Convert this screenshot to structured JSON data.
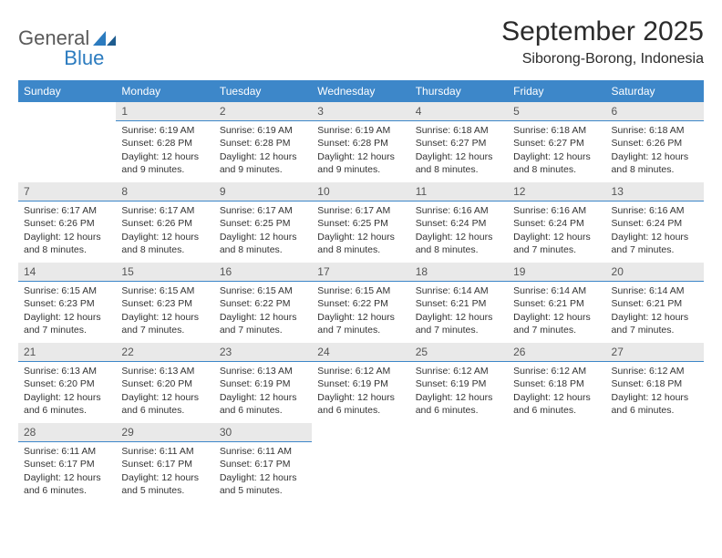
{
  "brand": {
    "word1": "General",
    "word2": "Blue",
    "logo_color": "#2b7bbf"
  },
  "header": {
    "title": "September 2025",
    "location": "Siborong-Borong, Indonesia"
  },
  "colors": {
    "header_bg": "#3d87c9",
    "header_text": "#ffffff",
    "daynum_bg": "#e9e9e9",
    "daynum_border": "#3d87c9",
    "body_text": "#333333"
  },
  "weekdays": [
    "Sunday",
    "Monday",
    "Tuesday",
    "Wednesday",
    "Thursday",
    "Friday",
    "Saturday"
  ],
  "calendar": {
    "start_offset": 1,
    "days": [
      {
        "n": 1,
        "sunrise": "6:19 AM",
        "sunset": "6:28 PM",
        "daylight": "12 hours and 9 minutes."
      },
      {
        "n": 2,
        "sunrise": "6:19 AM",
        "sunset": "6:28 PM",
        "daylight": "12 hours and 9 minutes."
      },
      {
        "n": 3,
        "sunrise": "6:19 AM",
        "sunset": "6:28 PM",
        "daylight": "12 hours and 9 minutes."
      },
      {
        "n": 4,
        "sunrise": "6:18 AM",
        "sunset": "6:27 PM",
        "daylight": "12 hours and 8 minutes."
      },
      {
        "n": 5,
        "sunrise": "6:18 AM",
        "sunset": "6:27 PM",
        "daylight": "12 hours and 8 minutes."
      },
      {
        "n": 6,
        "sunrise": "6:18 AM",
        "sunset": "6:26 PM",
        "daylight": "12 hours and 8 minutes."
      },
      {
        "n": 7,
        "sunrise": "6:17 AM",
        "sunset": "6:26 PM",
        "daylight": "12 hours and 8 minutes."
      },
      {
        "n": 8,
        "sunrise": "6:17 AM",
        "sunset": "6:26 PM",
        "daylight": "12 hours and 8 minutes."
      },
      {
        "n": 9,
        "sunrise": "6:17 AM",
        "sunset": "6:25 PM",
        "daylight": "12 hours and 8 minutes."
      },
      {
        "n": 10,
        "sunrise": "6:17 AM",
        "sunset": "6:25 PM",
        "daylight": "12 hours and 8 minutes."
      },
      {
        "n": 11,
        "sunrise": "6:16 AM",
        "sunset": "6:24 PM",
        "daylight": "12 hours and 8 minutes."
      },
      {
        "n": 12,
        "sunrise": "6:16 AM",
        "sunset": "6:24 PM",
        "daylight": "12 hours and 7 minutes."
      },
      {
        "n": 13,
        "sunrise": "6:16 AM",
        "sunset": "6:24 PM",
        "daylight": "12 hours and 7 minutes."
      },
      {
        "n": 14,
        "sunrise": "6:15 AM",
        "sunset": "6:23 PM",
        "daylight": "12 hours and 7 minutes."
      },
      {
        "n": 15,
        "sunrise": "6:15 AM",
        "sunset": "6:23 PM",
        "daylight": "12 hours and 7 minutes."
      },
      {
        "n": 16,
        "sunrise": "6:15 AM",
        "sunset": "6:22 PM",
        "daylight": "12 hours and 7 minutes."
      },
      {
        "n": 17,
        "sunrise": "6:15 AM",
        "sunset": "6:22 PM",
        "daylight": "12 hours and 7 minutes."
      },
      {
        "n": 18,
        "sunrise": "6:14 AM",
        "sunset": "6:21 PM",
        "daylight": "12 hours and 7 minutes."
      },
      {
        "n": 19,
        "sunrise": "6:14 AM",
        "sunset": "6:21 PM",
        "daylight": "12 hours and 7 minutes."
      },
      {
        "n": 20,
        "sunrise": "6:14 AM",
        "sunset": "6:21 PM",
        "daylight": "12 hours and 7 minutes."
      },
      {
        "n": 21,
        "sunrise": "6:13 AM",
        "sunset": "6:20 PM",
        "daylight": "12 hours and 6 minutes."
      },
      {
        "n": 22,
        "sunrise": "6:13 AM",
        "sunset": "6:20 PM",
        "daylight": "12 hours and 6 minutes."
      },
      {
        "n": 23,
        "sunrise": "6:13 AM",
        "sunset": "6:19 PM",
        "daylight": "12 hours and 6 minutes."
      },
      {
        "n": 24,
        "sunrise": "6:12 AM",
        "sunset": "6:19 PM",
        "daylight": "12 hours and 6 minutes."
      },
      {
        "n": 25,
        "sunrise": "6:12 AM",
        "sunset": "6:19 PM",
        "daylight": "12 hours and 6 minutes."
      },
      {
        "n": 26,
        "sunrise": "6:12 AM",
        "sunset": "6:18 PM",
        "daylight": "12 hours and 6 minutes."
      },
      {
        "n": 27,
        "sunrise": "6:12 AM",
        "sunset": "6:18 PM",
        "daylight": "12 hours and 6 minutes."
      },
      {
        "n": 28,
        "sunrise": "6:11 AM",
        "sunset": "6:17 PM",
        "daylight": "12 hours and 6 minutes."
      },
      {
        "n": 29,
        "sunrise": "6:11 AM",
        "sunset": "6:17 PM",
        "daylight": "12 hours and 5 minutes."
      },
      {
        "n": 30,
        "sunrise": "6:11 AM",
        "sunset": "6:17 PM",
        "daylight": "12 hours and 5 minutes."
      }
    ]
  },
  "labels": {
    "sunrise_prefix": "Sunrise: ",
    "sunset_prefix": "Sunset: ",
    "daylight_prefix": "Daylight: "
  }
}
